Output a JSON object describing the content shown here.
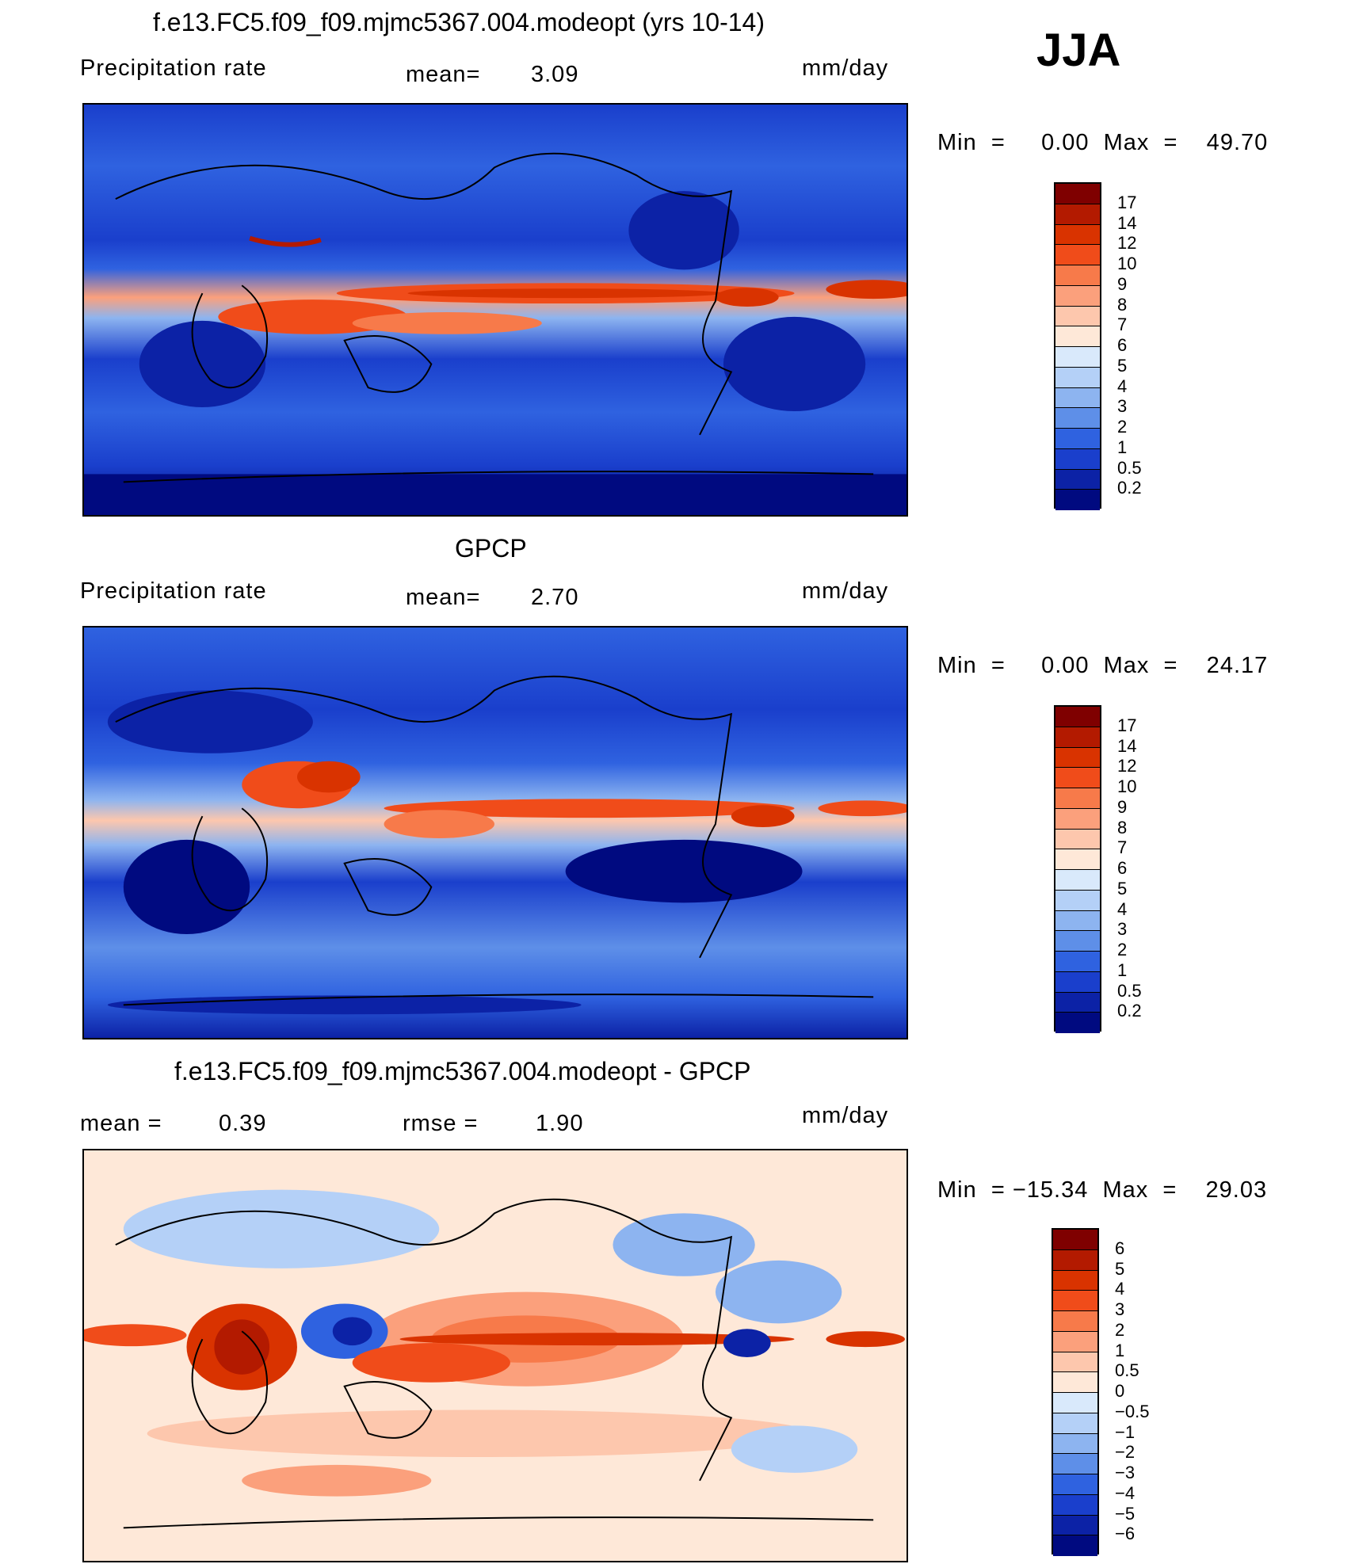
{
  "season": "JJA",
  "units": "mm/day",
  "panels": [
    {
      "title": "f.e13.FC5.f09_f09.mjmc5367.004.modeopt (yrs 10-14)",
      "left_label": "Precipitation  rate",
      "mid_label": "mean=",
      "mid_value": "3.09",
      "minmax": "Min  =     0.00  Max  =    49.70"
    },
    {
      "title": "GPCP",
      "left_label": "Precipitation  rate",
      "mid_label": "mean=",
      "mid_value": "2.70",
      "minmax": "Min  =     0.00  Max  =    24.17"
    },
    {
      "title": "f.e13.FC5.f09_f09.mjmc5367.004.modeopt - GPCP",
      "left_label": "mean  =",
      "left_value": "0.39",
      "mid_label": "rmse  =",
      "mid_value": "1.90",
      "minmax": "Min  = −15.34  Max  =    29.03"
    }
  ],
  "colorbars": {
    "precip": {
      "labels": [
        "17",
        "14",
        "12",
        "10",
        "9",
        "8",
        "7",
        "6",
        "5",
        "4",
        "3",
        "2",
        "1",
        "0.5",
        "0.2"
      ],
      "colors": [
        "#7f0000",
        "#b31a00",
        "#d93300",
        "#f04c1a",
        "#f77a4a",
        "#fba07c",
        "#fdc7ad",
        "#fee8d8",
        "#d9e9fb",
        "#b4d0f7",
        "#8db4f0",
        "#5e8fe8",
        "#2f62e0",
        "#1a3fcc",
        "#0c22a6",
        "#000a80"
      ]
    },
    "diff": {
      "labels": [
        "6",
        "5",
        "4",
        "3",
        "2",
        "1",
        "0.5",
        "0",
        "−0.5",
        "−1",
        "−2",
        "−3",
        "−4",
        "−5",
        "−6"
      ],
      "colors": [
        "#7f0000",
        "#b31a00",
        "#d93300",
        "#f04c1a",
        "#f77a4a",
        "#fba07c",
        "#fdc7ad",
        "#fee8d8",
        "#d9e9fb",
        "#b4d0f7",
        "#8db4f0",
        "#5e8fe8",
        "#2f62e0",
        "#1a3fcc",
        "#0c22a6",
        "#000a80"
      ]
    }
  }
}
